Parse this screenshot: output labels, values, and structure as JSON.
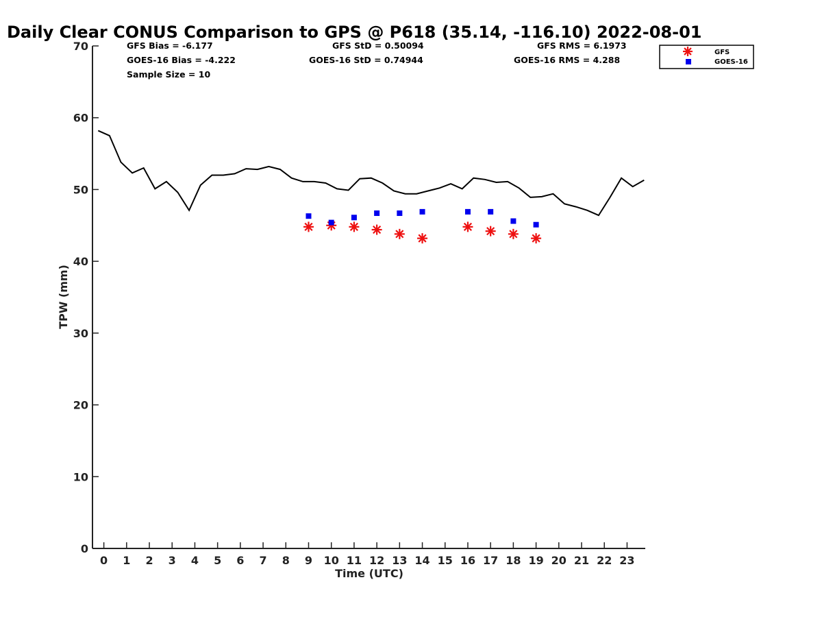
{
  "stats": {
    "gfs_bias": "GFS Bias = -6.177",
    "goes_bias": "GOES-16 Bias = -4.222",
    "sample_size": "Sample Size = 10",
    "gfs_std": "GFS StD = 0.50094",
    "goes_std": "GOES-16 StD = 0.74944",
    "gfs_rms": "GFS RMS = 6.1973",
    "goes_rms": "GOES-16 RMS = 4.288"
  },
  "chart_data": {
    "type": "line",
    "title": "Daily Clear CONUS Comparison to GPS @ P618 (35.14, -116.10) 2022-08-01",
    "xlabel": "Time (UTC)",
    "ylabel": "TPW (mm)",
    "xlim": [
      -0.5,
      23.8
    ],
    "ylim": [
      0,
      70
    ],
    "x_ticks": [
      0,
      1,
      2,
      3,
      4,
      5,
      6,
      7,
      8,
      9,
      10,
      11,
      12,
      13,
      14,
      15,
      16,
      17,
      18,
      19,
      20,
      21,
      22,
      23
    ],
    "y_ticks": [
      0,
      10,
      20,
      30,
      40,
      50,
      60,
      70
    ],
    "legend_position": "top-right outside",
    "grid": false,
    "series": [
      {
        "name": "",
        "kind": "line",
        "color": "#000000",
        "x": [
          -0.25,
          0.25,
          0.75,
          1.25,
          1.75,
          2.25,
          2.75,
          3.25,
          3.75,
          4.25,
          4.75,
          5.25,
          5.75,
          6.25,
          6.75,
          7.25,
          7.75,
          8.25,
          8.75,
          9.25,
          9.75,
          10.25,
          10.75,
          11.25,
          11.75,
          12.25,
          12.75,
          13.25,
          13.75,
          14.25,
          14.75,
          15.25,
          15.75,
          16.25,
          16.75,
          17.25,
          17.75,
          18.25,
          18.75,
          19.25,
          19.75,
          20.25,
          20.75,
          21.25,
          21.75,
          22.25,
          22.75,
          23.25,
          23.75
        ],
        "y": [
          58.2,
          57.5,
          53.8,
          52.3,
          53.0,
          50.1,
          51.1,
          49.6,
          47.1,
          50.6,
          52.0,
          52.0,
          52.2,
          52.9,
          52.8,
          53.2,
          52.8,
          51.6,
          51.1,
          51.1,
          50.9,
          50.1,
          49.9,
          51.5,
          51.6,
          50.9,
          49.8,
          49.4,
          49.4,
          49.8,
          50.2,
          50.8,
          50.1,
          51.6,
          51.4,
          51.0,
          51.1,
          50.2,
          48.9,
          49.0,
          49.4,
          48.0,
          47.6,
          47.1,
          46.4,
          48.9,
          51.6,
          50.4,
          51.3
        ]
      },
      {
        "name": "GFS",
        "kind": "asterisk",
        "color": "#ee1111",
        "x": [
          9,
          10,
          11,
          12,
          13,
          14,
          16,
          17,
          18,
          19
        ],
        "y": [
          44.8,
          45.0,
          44.8,
          44.4,
          43.8,
          43.2,
          44.8,
          44.2,
          43.8,
          43.2
        ]
      },
      {
        "name": "GOES-16",
        "kind": "square",
        "color": "#0000ee",
        "x": [
          9,
          10,
          11,
          12,
          13,
          14,
          16,
          17,
          18,
          19
        ],
        "y": [
          46.3,
          45.4,
          46.1,
          46.7,
          46.7,
          46.9,
          46.9,
          46.9,
          45.6,
          45.1
        ]
      }
    ]
  }
}
